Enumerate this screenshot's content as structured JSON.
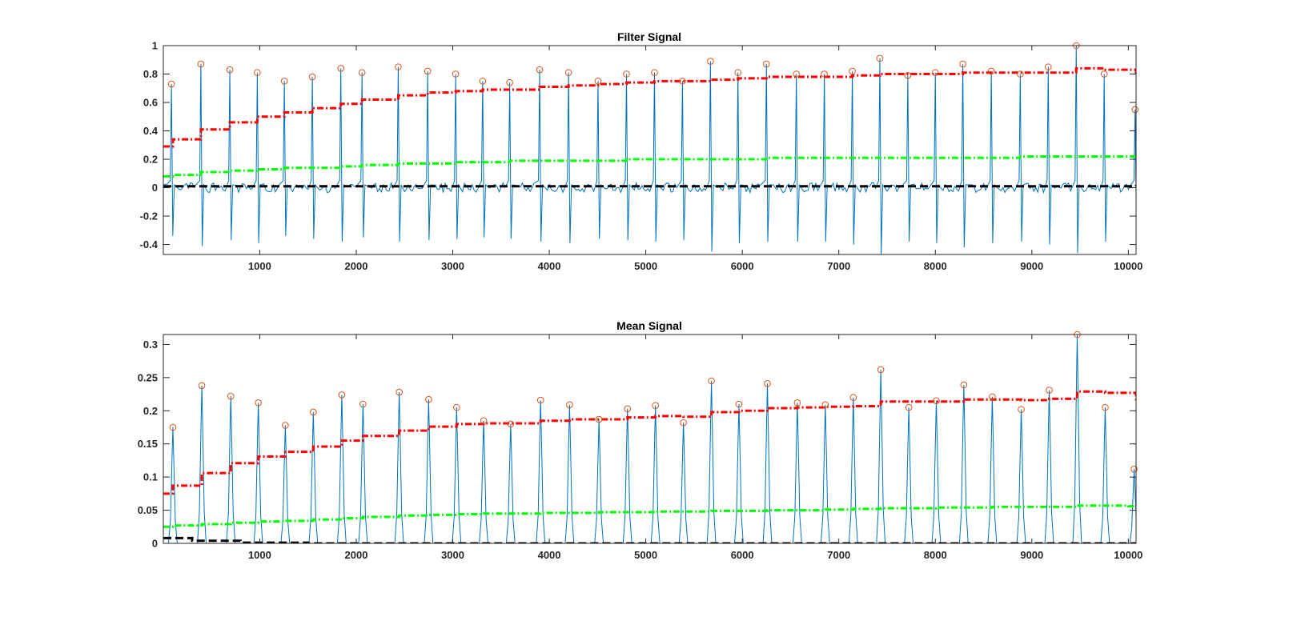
{
  "colors": {
    "signal": "#0072BD",
    "peak_marker": "#D95319",
    "threshold_red": "#FF0000",
    "threshold_green": "#00FF00",
    "threshold_black": "#000000",
    "axis": "#262626"
  },
  "chart_data": [
    {
      "type": "line",
      "title": "Filter Signal",
      "xlabel": "",
      "ylabel": "",
      "xlim": [
        1,
        10080
      ],
      "ylim": [
        -0.47,
        1.0
      ],
      "xticks": [
        1000,
        2000,
        3000,
        4000,
        5000,
        6000,
        7000,
        8000,
        9000,
        10000
      ],
      "xtick_labels": [
        "1000",
        "2000",
        "3000",
        "4000",
        "5000",
        "6000",
        "7000",
        "8000",
        "9000",
        "10000"
      ],
      "yticks": [
        -0.4,
        -0.2,
        0,
        0.2,
        0.4,
        0.6,
        0.8,
        1
      ],
      "ytick_labels": [
        "-0.4",
        "-0.2",
        "0",
        "0.2",
        "0.4",
        "0.6",
        "0.8",
        "1"
      ],
      "grid": false,
      "signal_style": "ecg",
      "baseline": 0.0,
      "series": [
        {
          "kind": "signal",
          "peak_x": [
            85,
            390,
            690,
            975,
            1255,
            1545,
            1840,
            2060,
            2435,
            2740,
            3030,
            3310,
            3590,
            3900,
            4200,
            4505,
            4800,
            5090,
            5380,
            5670,
            5955,
            6250,
            6560,
            6850,
            7140,
            7425,
            7715,
            8000,
            8285,
            8580,
            8880,
            9170,
            9460,
            9750,
            10070
          ],
          "peak_y": [
            0.73,
            0.87,
            0.83,
            0.81,
            0.75,
            0.78,
            0.84,
            0.81,
            0.85,
            0.82,
            0.8,
            0.75,
            0.74,
            0.83,
            0.81,
            0.75,
            0.8,
            0.81,
            0.75,
            0.89,
            0.81,
            0.87,
            0.8,
            0.8,
            0.82,
            0.91,
            0.79,
            0.81,
            0.87,
            0.82,
            0.8,
            0.85,
            1.0,
            0.8,
            0.55
          ],
          "trough_y": [
            -0.34,
            -0.41,
            -0.37,
            -0.39,
            -0.34,
            -0.36,
            -0.38,
            -0.35,
            -0.38,
            -0.37,
            -0.36,
            -0.35,
            -0.36,
            -0.38,
            -0.39,
            -0.36,
            -0.37,
            -0.38,
            -0.37,
            -0.45,
            -0.39,
            -0.38,
            -0.38,
            -0.38,
            -0.4,
            -0.47,
            -0.38,
            -0.39,
            -0.42,
            -0.39,
            -0.38,
            -0.4,
            -0.46,
            -0.38,
            -0.31
          ]
        },
        {
          "kind": "peaks",
          "marker": "circle",
          "x": [
            85,
            390,
            690,
            975,
            1255,
            1545,
            1840,
            2060,
            2435,
            2740,
            3030,
            3310,
            3590,
            3900,
            4200,
            4505,
            4800,
            5090,
            5380,
            5670,
            5955,
            6250,
            6560,
            6850,
            7140,
            7425,
            7715,
            8000,
            8285,
            8580,
            8880,
            9170,
            9460,
            9750,
            10070
          ],
          "y": [
            0.73,
            0.87,
            0.83,
            0.81,
            0.75,
            0.78,
            0.84,
            0.81,
            0.85,
            0.82,
            0.8,
            0.75,
            0.74,
            0.83,
            0.81,
            0.75,
            0.8,
            0.81,
            0.75,
            0.89,
            0.81,
            0.87,
            0.8,
            0.8,
            0.82,
            0.91,
            0.79,
            0.81,
            0.87,
            0.82,
            0.8,
            0.85,
            1.0,
            0.8,
            0.55
          ]
        },
        {
          "kind": "threshold",
          "style": "red",
          "x": [
            1,
            100,
            390,
            690,
            975,
            1255,
            1545,
            1840,
            2060,
            2435,
            2740,
            3030,
            3310,
            3590,
            3900,
            4200,
            4505,
            4800,
            5090,
            5380,
            5670,
            5955,
            6250,
            6560,
            6850,
            7140,
            7425,
            7715,
            8000,
            8285,
            8580,
            8880,
            9170,
            9460,
            9750,
            10000,
            10080
          ],
          "y": [
            0.29,
            0.34,
            0.41,
            0.46,
            0.5,
            0.53,
            0.56,
            0.59,
            0.62,
            0.65,
            0.67,
            0.68,
            0.69,
            0.69,
            0.71,
            0.72,
            0.73,
            0.74,
            0.75,
            0.75,
            0.76,
            0.77,
            0.78,
            0.78,
            0.78,
            0.79,
            0.8,
            0.8,
            0.8,
            0.81,
            0.81,
            0.81,
            0.81,
            0.84,
            0.83,
            0.83,
            0.8
          ]
        },
        {
          "kind": "threshold",
          "style": "green",
          "x": [
            1,
            100,
            390,
            690,
            975,
            1255,
            1545,
            1840,
            2060,
            2435,
            2740,
            3030,
            3310,
            3590,
            3900,
            4200,
            4505,
            4800,
            5090,
            5380,
            5670,
            5955,
            6250,
            6560,
            6850,
            7140,
            7425,
            7715,
            8000,
            8285,
            8580,
            8880,
            9170,
            9460,
            9750,
            10000,
            10080
          ],
          "y": [
            0.08,
            0.09,
            0.11,
            0.12,
            0.13,
            0.14,
            0.14,
            0.15,
            0.16,
            0.17,
            0.17,
            0.18,
            0.18,
            0.19,
            0.19,
            0.19,
            0.19,
            0.2,
            0.2,
            0.2,
            0.2,
            0.2,
            0.21,
            0.21,
            0.21,
            0.21,
            0.21,
            0.21,
            0.21,
            0.21,
            0.21,
            0.22,
            0.22,
            0.22,
            0.22,
            0.22,
            0.22
          ]
        },
        {
          "kind": "threshold",
          "style": "black",
          "x": [
            1,
            10080
          ],
          "y": [
            0.01,
            0.02
          ]
        }
      ]
    },
    {
      "type": "line",
      "title": "Mean Signal",
      "xlabel": "",
      "ylabel": "",
      "xlim": [
        1,
        10080
      ],
      "ylim": [
        0,
        0.315
      ],
      "xticks": [
        1000,
        2000,
        3000,
        4000,
        5000,
        6000,
        7000,
        8000,
        9000,
        10000
      ],
      "xtick_labels": [
        "1000",
        "2000",
        "3000",
        "4000",
        "5000",
        "6000",
        "7000",
        "8000",
        "9000",
        "10000"
      ],
      "yticks": [
        0,
        0.05,
        0.1,
        0.15,
        0.2,
        0.25,
        0.3
      ],
      "ytick_labels": [
        "0",
        "0.05",
        "0.1",
        "0.15",
        "0.2",
        "0.25",
        "0.3"
      ],
      "grid": false,
      "signal_style": "pulse",
      "baseline": 0.0,
      "series": [
        {
          "kind": "signal",
          "peak_x": [
            100,
            400,
            700,
            985,
            1265,
            1555,
            1850,
            2070,
            2445,
            2750,
            3040,
            3320,
            3600,
            3910,
            4210,
            4515,
            4810,
            5100,
            5390,
            5680,
            5965,
            6260,
            6570,
            6860,
            7150,
            7435,
            7725,
            8010,
            8295,
            8590,
            8890,
            9180,
            9470,
            9760,
            10060
          ],
          "peak_y": [
            0.175,
            0.238,
            0.222,
            0.212,
            0.178,
            0.198,
            0.224,
            0.21,
            0.228,
            0.217,
            0.205,
            0.185,
            0.18,
            0.216,
            0.209,
            0.187,
            0.203,
            0.208,
            0.182,
            0.245,
            0.21,
            0.241,
            0.212,
            0.209,
            0.22,
            0.262,
            0.205,
            0.215,
            0.239,
            0.221,
            0.202,
            0.231,
            0.315,
            0.205,
            0.112
          ]
        },
        {
          "kind": "peaks",
          "marker": "circle",
          "x": [
            100,
            400,
            700,
            985,
            1265,
            1555,
            1850,
            2070,
            2445,
            2750,
            3040,
            3320,
            3600,
            3910,
            4210,
            4515,
            4810,
            5100,
            5390,
            5680,
            5965,
            6260,
            6570,
            6860,
            7150,
            7435,
            7725,
            8010,
            8295,
            8590,
            8890,
            9180,
            9470,
            9760,
            10060
          ],
          "y": [
            0.175,
            0.238,
            0.222,
            0.212,
            0.178,
            0.198,
            0.224,
            0.21,
            0.228,
            0.217,
            0.205,
            0.185,
            0.18,
            0.216,
            0.209,
            0.187,
            0.203,
            0.208,
            0.182,
            0.245,
            0.21,
            0.241,
            0.212,
            0.209,
            0.22,
            0.262,
            0.205,
            0.215,
            0.239,
            0.221,
            0.202,
            0.231,
            0.315,
            0.205,
            0.112
          ]
        },
        {
          "kind": "threshold",
          "style": "red",
          "x": [
            1,
            100,
            400,
            700,
            985,
            1265,
            1555,
            1850,
            2070,
            2445,
            2750,
            3040,
            3320,
            3600,
            3910,
            4210,
            4515,
            4810,
            5100,
            5390,
            5680,
            5965,
            6260,
            6570,
            6860,
            7150,
            7435,
            7725,
            8010,
            8295,
            8590,
            8890,
            9180,
            9470,
            9760,
            10000,
            10080
          ],
          "y": [
            0.075,
            0.087,
            0.106,
            0.121,
            0.131,
            0.138,
            0.146,
            0.155,
            0.162,
            0.17,
            0.176,
            0.18,
            0.181,
            0.181,
            0.185,
            0.187,
            0.187,
            0.19,
            0.192,
            0.191,
            0.198,
            0.2,
            0.204,
            0.205,
            0.206,
            0.207,
            0.214,
            0.214,
            0.214,
            0.217,
            0.217,
            0.216,
            0.218,
            0.229,
            0.227,
            0.227,
            0.213
          ]
        },
        {
          "kind": "threshold",
          "style": "green",
          "x": [
            1,
            100,
            400,
            700,
            985,
            1265,
            1555,
            1850,
            2070,
            2445,
            2750,
            3040,
            3320,
            3600,
            3910,
            4210,
            4515,
            4810,
            5100,
            5390,
            5680,
            5965,
            6260,
            6570,
            6860,
            7150,
            7435,
            7725,
            8010,
            8295,
            8590,
            8890,
            9180,
            9470,
            9760,
            10000,
            10080
          ],
          "y": [
            0.025,
            0.027,
            0.029,
            0.031,
            0.033,
            0.034,
            0.036,
            0.038,
            0.04,
            0.042,
            0.043,
            0.044,
            0.045,
            0.045,
            0.046,
            0.046,
            0.047,
            0.047,
            0.048,
            0.048,
            0.049,
            0.049,
            0.05,
            0.05,
            0.051,
            0.052,
            0.053,
            0.053,
            0.054,
            0.054,
            0.055,
            0.055,
            0.055,
            0.057,
            0.057,
            0.056,
            0.056
          ]
        },
        {
          "kind": "threshold",
          "style": "black",
          "x": [
            1,
            300,
            800,
            1500,
            10080
          ],
          "y": [
            0.008,
            0.004,
            0.001,
            0.0,
            0.0
          ]
        }
      ]
    }
  ]
}
